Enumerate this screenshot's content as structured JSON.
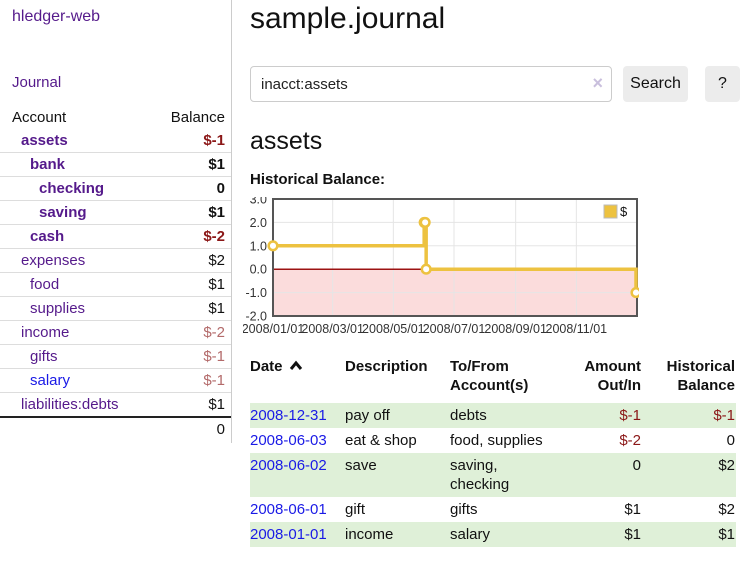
{
  "sidebar": {
    "app_title": "hledger-web",
    "nav": {
      "journal_label": "Journal"
    },
    "accounts_table": {
      "headers": {
        "account": "Account",
        "balance": "Balance"
      },
      "rows": [
        {
          "name": "assets",
          "balance": "$-1",
          "depth": 1,
          "bold": true,
          "balance_style": "neg",
          "link_color": "purple"
        },
        {
          "name": "bank",
          "balance": "$1",
          "depth": 2,
          "bold": true,
          "balance_style": "pos",
          "link_color": "purple"
        },
        {
          "name": "checking",
          "balance": "0",
          "depth": 3,
          "bold": true,
          "balance_style": "pos",
          "link_color": "purple"
        },
        {
          "name": "saving",
          "balance": "$1",
          "depth": 3,
          "bold": true,
          "balance_style": "pos",
          "link_color": "purple"
        },
        {
          "name": "cash",
          "balance": "$-2",
          "depth": 2,
          "bold": true,
          "balance_style": "neg",
          "link_color": "purple"
        },
        {
          "name": "expenses",
          "balance": "$2",
          "depth": 1,
          "bold": false,
          "balance_style": "pos",
          "link_color": "purple"
        },
        {
          "name": "food",
          "balance": "$1",
          "depth": 2,
          "bold": false,
          "balance_style": "pos",
          "link_color": "purple"
        },
        {
          "name": "supplies",
          "balance": "$1",
          "depth": 2,
          "bold": false,
          "balance_style": "pos",
          "link_color": "purple"
        },
        {
          "name": "income",
          "balance": "$-2",
          "depth": 1,
          "bold": false,
          "balance_style": "neg-light",
          "link_color": "purple"
        },
        {
          "name": "gifts",
          "balance": "$-1",
          "depth": 2,
          "bold": false,
          "balance_style": "neg-light",
          "link_color": "purple"
        },
        {
          "name": "salary",
          "balance": "$-1",
          "depth": 2,
          "bold": false,
          "balance_style": "neg-light",
          "link_color": "blue"
        },
        {
          "name": "liabilities:debts",
          "balance": "$1",
          "depth": 1,
          "bold": false,
          "balance_style": "pos",
          "link_color": "purple"
        }
      ],
      "total": "0"
    }
  },
  "header": {
    "title": "sample.journal"
  },
  "search": {
    "value": "inacct:assets",
    "placeholder": "",
    "clear_icon": "×",
    "button_label": "Search",
    "help_label": "?"
  },
  "account_page": {
    "heading": "assets",
    "chart_label": "Historical Balance:"
  },
  "chart_data": {
    "type": "line",
    "step": true,
    "title": "Historical Balance",
    "series": [
      {
        "name": "$",
        "color": "#edc240",
        "points": [
          [
            "2008-01-01",
            1
          ],
          [
            "2008-06-01",
            2
          ],
          [
            "2008-06-02",
            2
          ],
          [
            "2008-06-03",
            0
          ],
          [
            "2008-12-31",
            -1
          ]
        ]
      }
    ],
    "xlim": [
      "2008-01-01",
      "2009-01-01"
    ],
    "ylim": [
      -2,
      3
    ],
    "yticks": [
      {
        "v": 3,
        "label": "3.0"
      },
      {
        "v": 2,
        "label": "2.0"
      },
      {
        "v": 1,
        "label": "1.0"
      },
      {
        "v": 0,
        "label": "0.0"
      },
      {
        "v": -1,
        "label": "-1.0"
      },
      {
        "v": -2,
        "label": "-2.0"
      }
    ],
    "xticks": [
      {
        "date": "2008-01-01",
        "label": "2008/01/01"
      },
      {
        "date": "2008-03-01",
        "label": "2008/03/01"
      },
      {
        "date": "2008-05-01",
        "label": "2008/05/01"
      },
      {
        "date": "2008-07-01",
        "label": "2008/07/01"
      },
      {
        "date": "2008-09-01",
        "label": "2008/09/01"
      },
      {
        "date": "2008-11-01",
        "label": "2008/11/01"
      }
    ],
    "grid": true,
    "legend": {
      "label": "$",
      "position": "top-right"
    },
    "colors": {
      "line": "#edc240",
      "marker_fill": "#ffffff",
      "negative_region": "#fbdcdc",
      "zero_line": "#9c1313",
      "gridline": "#e5e5e5",
      "plot_border": "#555555",
      "tick_text": "#333333",
      "legend_box_border": "#bbbbbb"
    }
  },
  "transactions": {
    "headers": [
      "Date",
      "Description",
      "To/From\nAccount(s)",
      "Amount\nOut/In",
      "Historical\nBalance"
    ],
    "sort": {
      "column": "Date",
      "direction": "ascending"
    },
    "rows": [
      {
        "date": "2008-12-31",
        "description": "pay off",
        "accounts": "debts",
        "amount": "$-1",
        "balance": "$-1",
        "amount_neg": true,
        "balance_neg": true
      },
      {
        "date": "2008-06-03",
        "description": "eat & shop",
        "accounts": "food, supplies",
        "amount": "$-2",
        "balance": "0",
        "amount_neg": true,
        "balance_neg": false
      },
      {
        "date": "2008-06-02",
        "description": "save",
        "accounts": "saving,\nchecking",
        "amount": "0",
        "balance": "$2",
        "amount_neg": false,
        "balance_neg": false
      },
      {
        "date": "2008-06-01",
        "description": "gift",
        "accounts": "gifts",
        "amount": "$1",
        "balance": "$2",
        "amount_neg": false,
        "balance_neg": false
      },
      {
        "date": "2008-01-01",
        "description": "income",
        "accounts": "salary",
        "amount": "$1",
        "balance": "$1",
        "amount_neg": false,
        "balance_neg": false
      }
    ]
  }
}
